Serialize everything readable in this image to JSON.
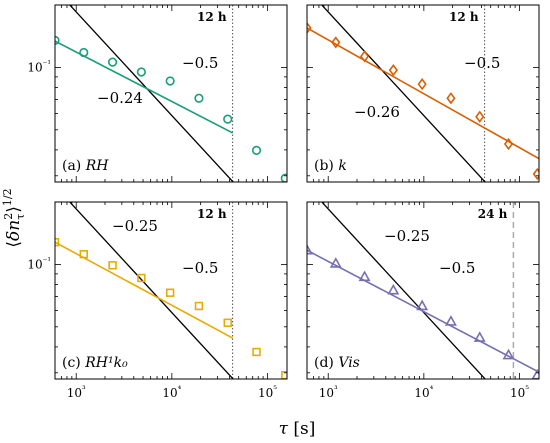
{
  "chart_data": {
    "type": "scatter",
    "xlabel": "τ [s]",
    "ylabel": "⟨δn_τ²⟩^1/2",
    "xscale": "log",
    "yscale": "log",
    "xlim": [
      600,
      160000
    ],
    "ylim": [
      0.028,
      0.2
    ],
    "xticks": [
      {
        "v": 1000,
        "label": "10³"
      },
      {
        "v": 10000,
        "label": "10⁴"
      },
      {
        "v": 100000,
        "label": "10⁵"
      }
    ],
    "yticks": [
      {
        "v": 0.1,
        "label": "10⁻¹"
      }
    ],
    "panels": [
      {
        "id": "a",
        "label_prefix": "(a) ",
        "label_var": "RH",
        "color": "#1a9e77",
        "marker": "circle",
        "vline": {
          "x": 43200,
          "label": "12 h",
          "color": "#555555",
          "style": "dotted"
        },
        "ref_slope": {
          "label": "−0.5",
          "x": [
            600,
            160000
          ],
          "y": [
            0.239,
            0.01464
          ]
        },
        "fit": {
          "label": "−0.24",
          "x": [
            600,
            43200
          ],
          "y": [
            0.134,
            0.0483
          ]
        },
        "points": {
          "x": [
            600,
            1200,
            2400,
            4800,
            9600,
            19200,
            38400,
            76800,
            153600
          ],
          "y": [
            0.135,
            0.118,
            0.106,
            0.095,
            0.086,
            0.071,
            0.0563,
            0.0398,
            0.0292
          ]
        }
      },
      {
        "id": "b",
        "label_prefix": "(b) ",
        "label_var": "k",
        "color": "#d95f02",
        "marker": "diamond",
        "vline": {
          "x": 43200,
          "label": "12 h",
          "color": "#555555",
          "style": "dotted"
        },
        "ref_slope": {
          "label": "−0.5",
          "x": [
            600,
            160000
          ],
          "y": [
            0.239,
            0.01464
          ]
        },
        "fit": {
          "label": "−0.26",
          "x": [
            600,
            160000
          ],
          "y": [
            0.155,
            0.0363
          ]
        },
        "points": {
          "x": [
            600,
            1200,
            2400,
            4800,
            9600,
            19200,
            38400,
            76800,
            153600
          ],
          "y": [
            0.155,
            0.132,
            0.113,
            0.097,
            0.083,
            0.071,
            0.0578,
            0.0427,
            0.0306
          ]
        }
      },
      {
        "id": "c",
        "label_prefix": "(c) ",
        "label_var": "RH¹k₀",
        "color": "#e6ab02",
        "marker": "square",
        "vline": {
          "x": 43200,
          "label": "12 h",
          "color": "#555555",
          "style": "dotted"
        },
        "ref_slope": {
          "label": "−0.5",
          "x": [
            600,
            160000
          ],
          "y": [
            0.239,
            0.01464
          ]
        },
        "fit": {
          "label": "−0.25",
          "x": [
            600,
            43200
          ],
          "y": [
            0.128,
            0.0441
          ]
        },
        "points": {
          "x": [
            600,
            1200,
            2400,
            4800,
            9600,
            19200,
            38400,
            76800,
            153600
          ],
          "y": [
            0.128,
            0.112,
            0.099,
            0.086,
            0.073,
            0.063,
            0.0523,
            0.0378,
            0.0292
          ]
        }
      },
      {
        "id": "d",
        "label_prefix": "(d) ",
        "label_var": "Vis",
        "color": "#7570b3",
        "marker": "triangle",
        "vline": {
          "x": 86400,
          "label": "24 h",
          "color": "#aaaaaa",
          "style": "dashed"
        },
        "ref_slope": {
          "label": "−0.5",
          "x": [
            600,
            160000
          ],
          "y": [
            0.239,
            0.01464
          ]
        },
        "fit": {
          "label": "−0.25",
          "x": [
            600,
            160000
          ],
          "y": [
            0.117,
            0.0302
          ]
        },
        "points": {
          "x": [
            600,
            1200,
            2400,
            4800,
            9600,
            19200,
            38400,
            76800,
            153600
          ],
          "y": [
            0.117,
            0.101,
            0.087,
            0.075,
            0.063,
            0.053,
            0.0443,
            0.0365,
            0.0292
          ]
        }
      }
    ]
  }
}
